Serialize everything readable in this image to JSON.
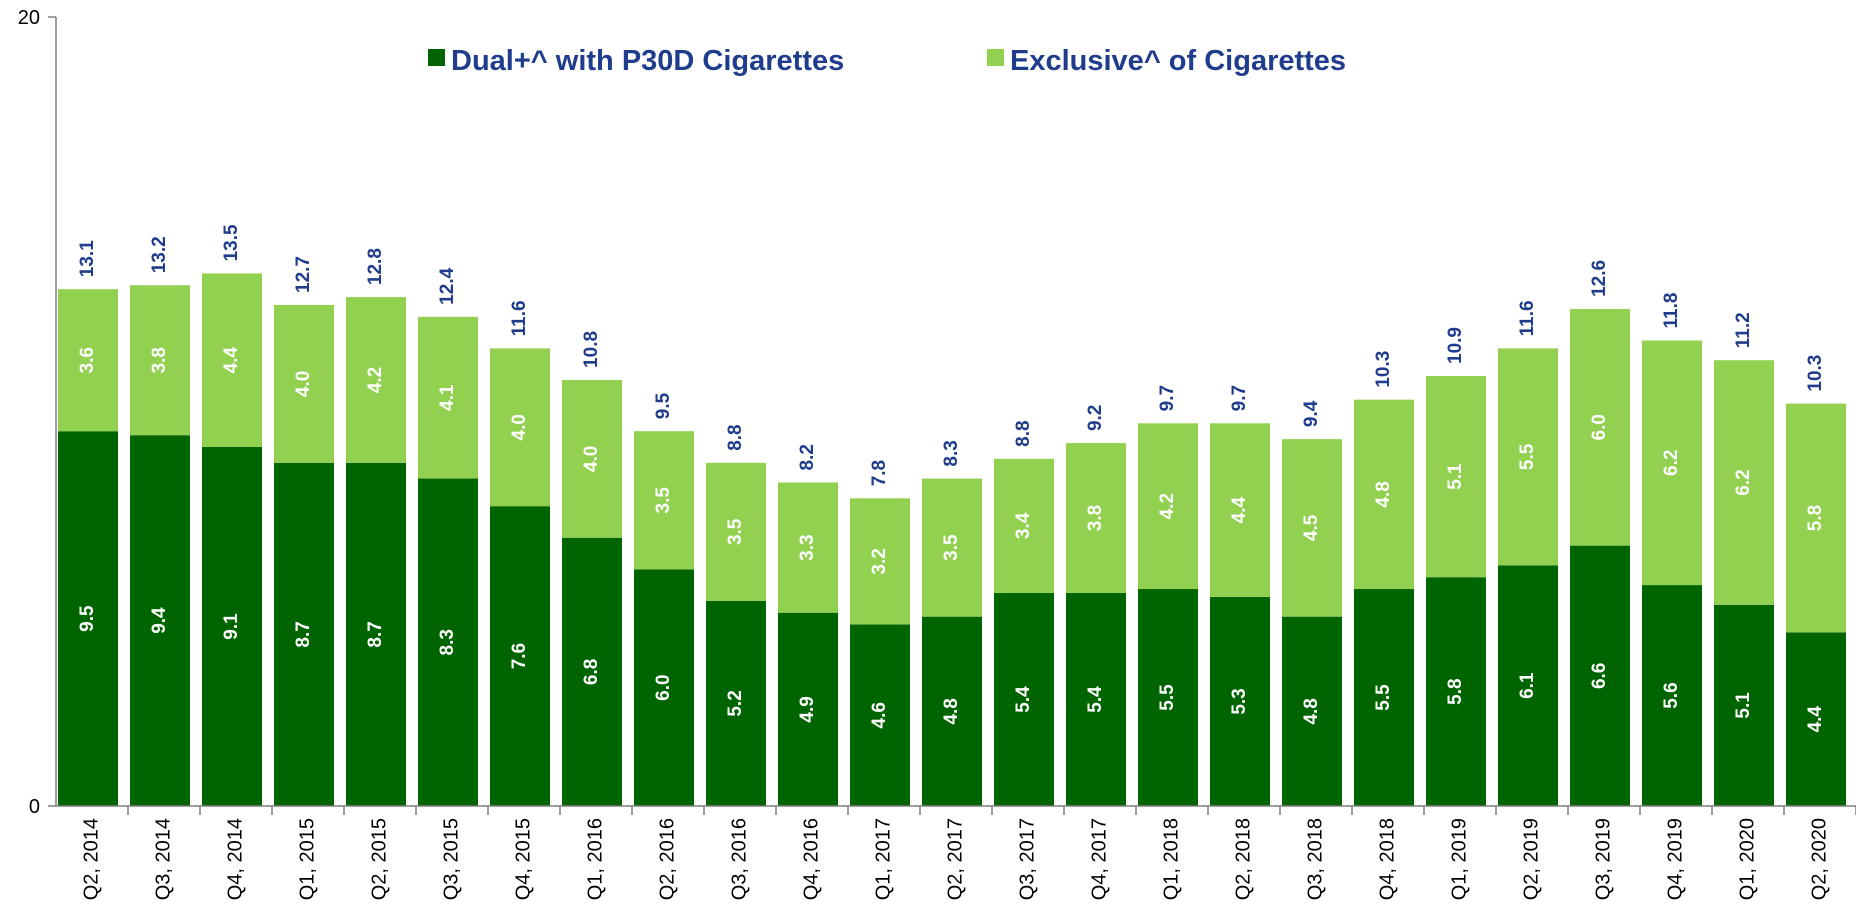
{
  "chart_data": {
    "type": "bar",
    "stacked": true,
    "categories": [
      "Q2, 2014",
      "Q3, 2014",
      "Q4, 2014",
      "Q1, 2015",
      "Q2, 2015",
      "Q3, 2015",
      "Q4, 2015",
      "Q1, 2016",
      "Q2, 2016",
      "Q3, 2016",
      "Q4, 2016",
      "Q1, 2017",
      "Q2, 2017",
      "Q3, 2017",
      "Q4, 2017",
      "Q1, 2018",
      "Q2, 2018",
      "Q3, 2018",
      "Q4, 2018",
      "Q1, 2019",
      "Q2, 2019",
      "Q3, 2019",
      "Q4, 2019",
      "Q1, 2020",
      "Q2, 2020"
    ],
    "series": [
      {
        "name": "Dual+^ with P30D Cigarettes",
        "color": "#006400",
        "values": [
          9.5,
          9.4,
          9.1,
          8.7,
          8.7,
          8.3,
          7.6,
          6.8,
          6.0,
          5.2,
          4.9,
          4.6,
          4.8,
          5.4,
          5.4,
          5.5,
          5.3,
          4.8,
          5.5,
          5.8,
          6.1,
          6.6,
          5.6,
          5.1,
          4.4
        ]
      },
      {
        "name": "Exclusive^ of Cigarettes",
        "color": "#92d050",
        "values": [
          3.6,
          3.8,
          4.4,
          4.0,
          4.2,
          4.1,
          4.0,
          4.0,
          3.5,
          3.5,
          3.3,
          3.2,
          3.5,
          3.4,
          3.8,
          4.2,
          4.4,
          4.5,
          4.8,
          5.1,
          5.5,
          6.0,
          6.2,
          6.2,
          5.8
        ]
      }
    ],
    "totals": [
      13.1,
      13.2,
      13.5,
      12.7,
      12.8,
      12.4,
      11.6,
      10.8,
      9.5,
      8.8,
      8.2,
      7.8,
      8.3,
      8.8,
      9.2,
      9.7,
      9.7,
      9.4,
      10.3,
      10.9,
      11.6,
      12.6,
      11.8,
      11.2,
      10.3
    ],
    "ylim": [
      0,
      20
    ],
    "yticks": [
      "0",
      "20"
    ],
    "legend_position": "top",
    "label_color": "#1f3d8c",
    "axis_color": "#7f7f7f"
  }
}
